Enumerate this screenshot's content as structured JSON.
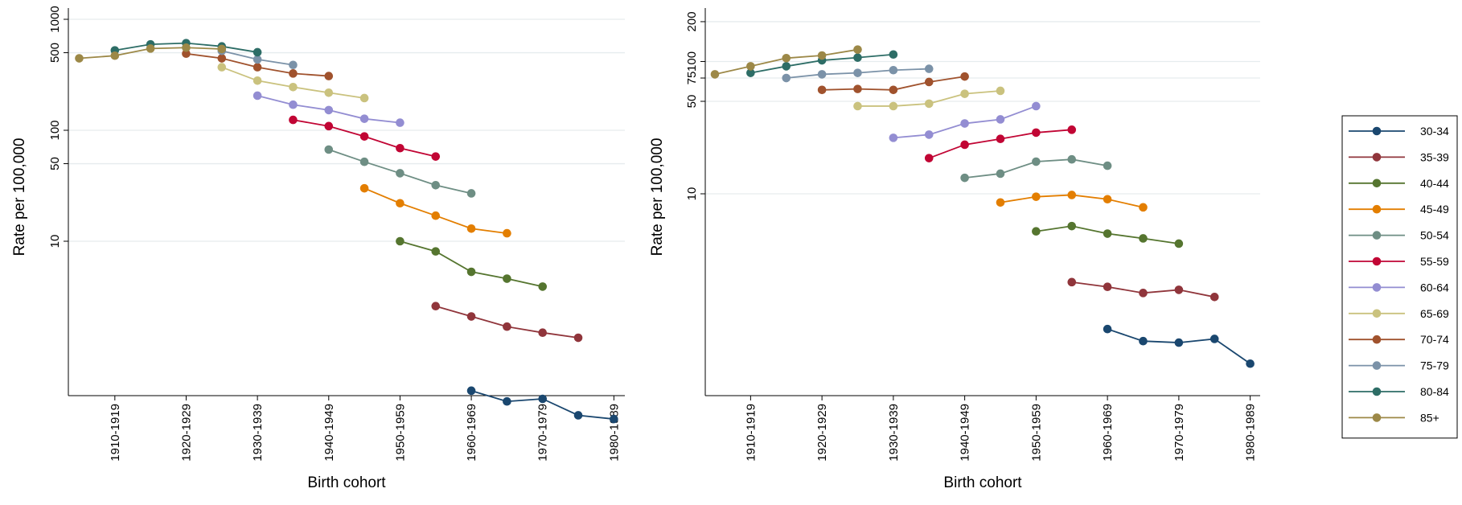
{
  "chart_data": [
    {
      "type": "line",
      "title": "",
      "xlabel": "Birth cohort",
      "ylabel": "Rate per 100,000",
      "yscale": "log",
      "ylim": [
        0.14,
        1300
      ],
      "yticks": [
        {
          "value": 10,
          "label": "10"
        },
        {
          "value": 50,
          "label": "50"
        },
        {
          "value": 100,
          "label": "100"
        },
        {
          "value": 500,
          "label": "500"
        },
        {
          "value": 1000,
          "label": "1000"
        }
      ],
      "xticks": [
        "1910-1919",
        "1920-1929",
        "1930-1939",
        "1940-1949",
        "1950-1959",
        "1960-1969",
        "1970-1979",
        "1980-1989"
      ],
      "xlim": [
        1905,
        1985
      ],
      "grid": true,
      "series": [
        {
          "name": "30-34",
          "x": [
            1960,
            1965,
            1970,
            1975,
            1980
          ],
          "y": [
            0.45,
            0.36,
            0.38,
            0.27,
            0.25
          ]
        },
        {
          "name": "35-39",
          "x": [
            1955,
            1960,
            1965,
            1970,
            1975
          ],
          "y": [
            2.6,
            2.1,
            1.7,
            1.5,
            1.35
          ]
        },
        {
          "name": "40-44",
          "x": [
            1950,
            1955,
            1960,
            1965,
            1970
          ],
          "y": [
            10,
            8.1,
            5.3,
            4.6,
            3.9
          ]
        },
        {
          "name": "45-49",
          "x": [
            1945,
            1950,
            1955,
            1960,
            1965
          ],
          "y": [
            30,
            22,
            17,
            13,
            11.8
          ]
        },
        {
          "name": "50-54",
          "x": [
            1940,
            1945,
            1950,
            1955,
            1960
          ],
          "y": [
            67,
            52,
            41,
            32,
            27
          ]
        },
        {
          "name": "55-59",
          "x": [
            1935,
            1940,
            1945,
            1950,
            1955
          ],
          "y": [
            124,
            109,
            88,
            69,
            58
          ]
        },
        {
          "name": "60-64",
          "x": [
            1930,
            1935,
            1940,
            1945,
            1950
          ],
          "y": [
            205,
            170,
            152,
            127,
            117
          ]
        },
        {
          "name": "65-69",
          "x": [
            1925,
            1930,
            1935,
            1940,
            1945
          ],
          "y": [
            370,
            280,
            245,
            218,
            195
          ]
        },
        {
          "name": "70-74",
          "x": [
            1920,
            1925,
            1930,
            1935,
            1940,
            1945
          ],
          "y": [
            490,
            445,
            370,
            325,
            308,
            null
          ]
        },
        {
          "name": "75-79",
          "x": [
            1925,
            1930,
            1935
          ],
          "y": [
            520,
            435,
            388
          ]
        },
        {
          "name": "80-84",
          "x": [
            1910,
            1915,
            1920,
            1925,
            1930
          ],
          "y": [
            525,
            595,
            610,
            570,
            505
          ]
        },
        {
          "name": "85+",
          "x": [
            1905,
            1910,
            1915,
            1920,
            1925
          ],
          "y": [
            445,
            470,
            545,
            555,
            540
          ]
        }
      ]
    },
    {
      "type": "line",
      "title": "",
      "xlabel": "Birth cohort",
      "ylabel": "Rate per 100,000",
      "yscale": "log",
      "ylim": [
        0.4,
        250
      ],
      "yticks": [
        {
          "value": 10,
          "label": "10"
        },
        {
          "value": 50,
          "label": "50"
        },
        {
          "value": 75,
          "label": "75"
        },
        {
          "value": 100,
          "label": "100"
        },
        {
          "value": 200,
          "label": "200"
        }
      ],
      "xticks": [
        "1910-1919",
        "1920-1929",
        "1930-1939",
        "1940-1949",
        "1950-1959",
        "1960-1969",
        "1970-1979",
        "1980-1989"
      ],
      "xlim": [
        1905,
        1985
      ],
      "grid": true,
      "series": [
        {
          "name": "30-34",
          "x": [
            1960,
            1965,
            1970,
            1975,
            1980
          ],
          "y": [
            0.95,
            0.77,
            0.75,
            0.8,
            0.52
          ]
        },
        {
          "name": "35-39",
          "x": [
            1955,
            1960,
            1965,
            1970,
            1975
          ],
          "y": [
            2.15,
            1.98,
            1.78,
            1.88,
            1.66
          ]
        },
        {
          "name": "40-44",
          "x": [
            1950,
            1955,
            1960,
            1965,
            1970
          ],
          "y": [
            5.2,
            5.7,
            5.0,
            4.6,
            4.2
          ]
        },
        {
          "name": "45-49",
          "x": [
            1945,
            1950,
            1955,
            1960,
            1965
          ],
          "y": [
            8.6,
            9.5,
            9.8,
            9.1,
            7.9
          ]
        },
        {
          "name": "50-54",
          "x": [
            1940,
            1945,
            1950,
            1955,
            1960
          ],
          "y": [
            13.2,
            14.2,
            17.5,
            18.2,
            16.3
          ]
        },
        {
          "name": "55-59",
          "x": [
            1935,
            1940,
            1945,
            1950,
            1955
          ],
          "y": [
            18.6,
            23.5,
            26,
            29,
            30.5
          ]
        },
        {
          "name": "60-64",
          "x": [
            1930,
            1935,
            1940,
            1945,
            1950
          ],
          "y": [
            26.5,
            28,
            34,
            36.5,
            46
          ]
        },
        {
          "name": "65-69",
          "x": [
            1925,
            1930,
            1935,
            1940,
            1945
          ],
          "y": [
            46,
            46,
            48,
            57,
            60
          ]
        },
        {
          "name": "70-74",
          "x": [
            1920,
            1925,
            1930,
            1935,
            1940
          ],
          "y": [
            61,
            62,
            61,
            70,
            77
          ]
        },
        {
          "name": "75-79",
          "x": [
            1915,
            1920,
            1925,
            1930,
            1935
          ],
          "y": [
            75,
            80,
            82,
            86,
            88
          ]
        },
        {
          "name": "80-84",
          "x": [
            1910,
            1915,
            1920,
            1925,
            1930
          ],
          "y": [
            82,
            92,
            102,
            107,
            113
          ]
        },
        {
          "name": "85+",
          "x": [
            1905,
            1910,
            1915,
            1920,
            1925
          ],
          "y": [
            80,
            92,
            106,
            111,
            123
          ]
        }
      ]
    }
  ],
  "legend": {
    "placement": "right",
    "items": [
      {
        "label": "30-34",
        "color": "#1a476f"
      },
      {
        "label": "35-39",
        "color": "#90353b"
      },
      {
        "label": "40-44",
        "color": "#55752f"
      },
      {
        "label": "45-49",
        "color": "#e37e00"
      },
      {
        "label": "50-54",
        "color": "#6e8e84"
      },
      {
        "label": "55-59",
        "color": "#c10534"
      },
      {
        "label": "60-64",
        "color": "#938dd2"
      },
      {
        "label": "65-69",
        "color": "#cac27e"
      },
      {
        "label": "70-74",
        "color": "#a0522d"
      },
      {
        "label": "75-79",
        "color": "#7b92a8"
      },
      {
        "label": "80-84",
        "color": "#2d6d66"
      },
      {
        "label": "85+",
        "color": "#9c8847"
      }
    ]
  }
}
